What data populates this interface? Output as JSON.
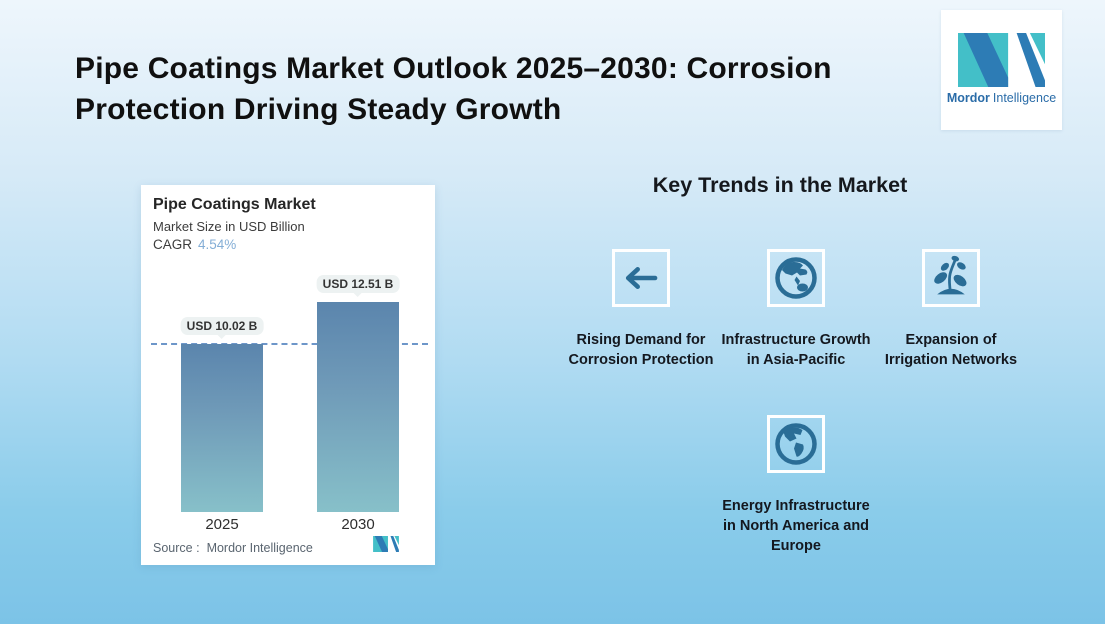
{
  "header": {
    "title_lines": [
      "Pipe Coatings Market Outlook 2025–2030: Corrosion",
      "Protection Driving Steady Growth"
    ]
  },
  "logo": {
    "brand_bold": "Mordor",
    "brand_regular": "Intelligence"
  },
  "chart_card": {
    "title": "Pipe Coatings Market",
    "subtitle": "Market Size in USD Billion",
    "cagr_label": "CAGR",
    "cagr_value": "4.54%",
    "source_label": "Source :",
    "source_value": "Mordor Intelligence"
  },
  "chart_data": {
    "type": "bar",
    "title": "Pipe Coatings Market",
    "subtitle": "Market Size in USD Billion",
    "cagr_percent": 4.54,
    "categories": [
      "2025",
      "2030"
    ],
    "values": [
      10.02,
      12.51
    ],
    "unit": "USD Billion",
    "bar_labels": [
      "USD 10.02 B",
      "USD 12.51 B"
    ],
    "baseline_dashed_at": 10.02,
    "ylim": [
      0,
      14
    ],
    "grid": false,
    "legend": "none",
    "source": "Mordor Intelligence",
    "colors": {
      "bar_gradient_top": "#5b85ad",
      "bar_gradient_bottom": "#87c0c9",
      "dashed_line": "#6d96c9",
      "cagr_value_text": "#84aed6",
      "label_pill_bg": "#edf2f2"
    }
  },
  "trends": {
    "heading": "Key Trends in the Market",
    "items": [
      {
        "icon": "arrow-left-icon",
        "label": "Rising Demand for Corrosion Protection"
      },
      {
        "icon": "globe-asia-icon",
        "label": "Infrastructure Growth in Asia-Pacific"
      },
      {
        "icon": "plant-growth-icon",
        "label": "Expansion of Irrigation Networks"
      },
      {
        "icon": "globe-americas-icon",
        "label": "Energy Infrastructure in North America and Europe"
      }
    ],
    "icon_color": "#2a6d96"
  },
  "brand_colors": {
    "teal": "#43bfc8",
    "blue": "#2d7cb5",
    "text_blue": "#2a6ca8"
  }
}
